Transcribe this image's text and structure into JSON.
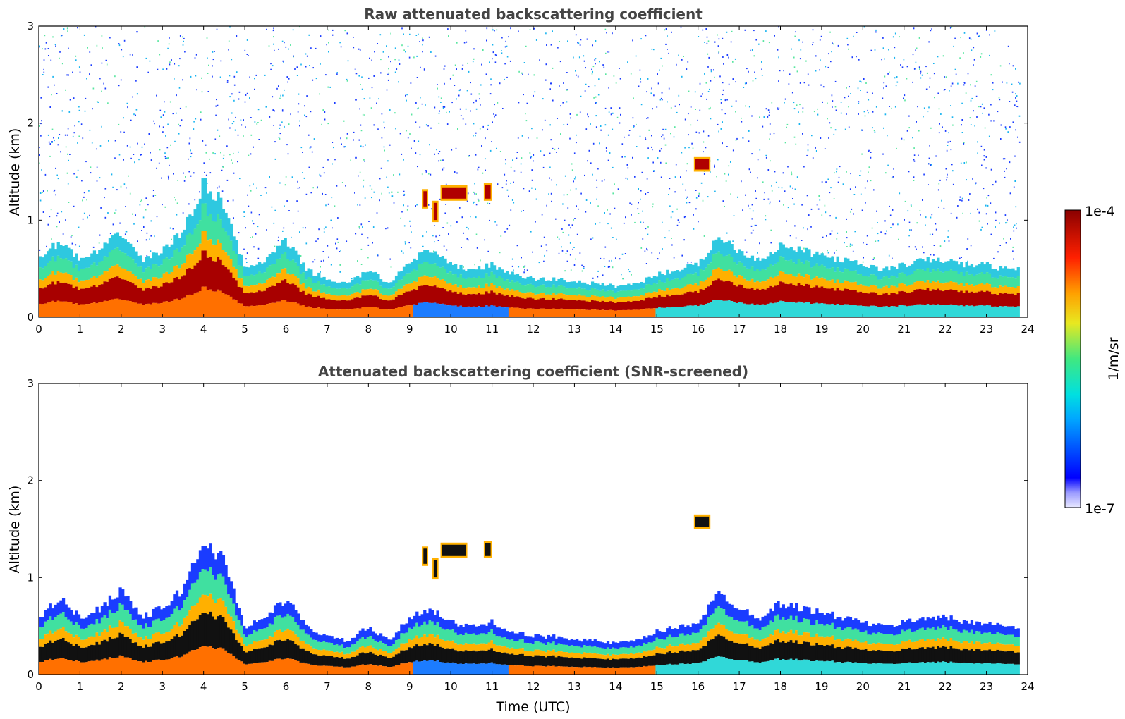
{
  "chart_data": [
    {
      "type": "heatmap",
      "title": "Raw attenuated backscattering coefficient",
      "xlabel": "",
      "ylabel": "Altitude (km)",
      "xlim": [
        0,
        24
      ],
      "ylim": [
        0,
        3
      ],
      "x_ticks": [
        "0",
        "1",
        "2",
        "3",
        "4",
        "5",
        "6",
        "7",
        "8",
        "9",
        "10",
        "11",
        "12",
        "13",
        "14",
        "15",
        "16",
        "17",
        "18",
        "19",
        "20",
        "21",
        "22",
        "23",
        "24"
      ],
      "y_ticks": [
        "0",
        "1",
        "2",
        "3"
      ],
      "layer_top_km": {
        "time": [
          0,
          0.5,
          1,
          1.5,
          2,
          2.5,
          3,
          3.5,
          4,
          4.5,
          5,
          5.5,
          6,
          6.5,
          7,
          7.5,
          8,
          8.5,
          9,
          9.5,
          10,
          10.5,
          11,
          11.5,
          12,
          12.5,
          13,
          13.5,
          14,
          14.5,
          15,
          15.5,
          16,
          16.5,
          17,
          17.5,
          18,
          18.5,
          19,
          19.5,
          20,
          20.5,
          21,
          21.5,
          22,
          22.5,
          23,
          23.5,
          23.8
        ],
        "altitude": [
          0.6,
          0.8,
          0.6,
          0.7,
          0.9,
          0.6,
          0.7,
          0.9,
          1.4,
          1.2,
          0.5,
          0.6,
          0.8,
          0.5,
          0.4,
          0.35,
          0.5,
          0.35,
          0.6,
          0.7,
          0.55,
          0.5,
          0.55,
          0.45,
          0.4,
          0.4,
          0.38,
          0.35,
          0.33,
          0.35,
          0.45,
          0.5,
          0.55,
          0.85,
          0.7,
          0.6,
          0.75,
          0.7,
          0.65,
          0.6,
          0.55,
          0.5,
          0.55,
          0.6,
          0.6,
          0.55,
          0.55,
          0.5,
          0.5
        ]
      },
      "features": [
        "cloud ~1.2–1.3 km at 9.3–11.0 UTC",
        "cloud ~1.55 km at 16.0–16.3 UTC"
      ]
    },
    {
      "type": "heatmap",
      "title": "Attenuated backscattering coefficient (SNR-screened)",
      "xlabel": "Time (UTC)",
      "ylabel": "Altitude (km)",
      "xlim": [
        0,
        24
      ],
      "ylim": [
        0,
        3
      ],
      "x_ticks": [
        "0",
        "1",
        "2",
        "3",
        "4",
        "5",
        "6",
        "7",
        "8",
        "9",
        "10",
        "11",
        "12",
        "13",
        "14",
        "15",
        "16",
        "17",
        "18",
        "19",
        "20",
        "21",
        "22",
        "23",
        "24"
      ],
      "y_ticks": [
        "0",
        "1",
        "2",
        "3"
      ]
    }
  ],
  "colorbar": {
    "label": "1/m/sr",
    "max_label": "1e-4",
    "min_label": "1e-7",
    "colormap": "jet"
  }
}
